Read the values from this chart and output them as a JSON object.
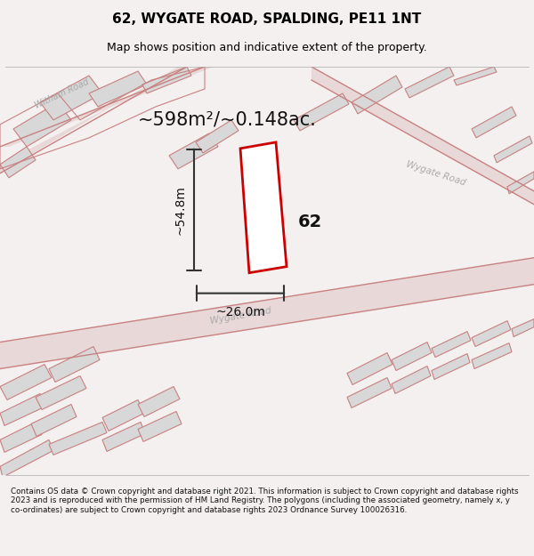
{
  "title": "62, WYGATE ROAD, SPALDING, PE11 1NT",
  "subtitle": "Map shows position and indicative extent of the property.",
  "area_text": "~598m²/~0.148ac.",
  "width_label": "~26.0m",
  "height_label": "~54.8m",
  "number_label": "62",
  "footer": "Contains OS data © Crown copyright and database right 2021. This information is subject to Crown copyright and database rights 2023 and is reproduced with the permission of HM Land Registry. The polygons (including the associated geometry, namely x, y co-ordinates) are subject to Crown copyright and database rights 2023 Ordnance Survey 100026316.",
  "bg_color": "#f5f0f0",
  "map_bg_color": "#ffffff",
  "plot_color": "#cc0000",
  "plot_fill": "#ffffff",
  "building_fill": "#d8d8d8",
  "road_line_color": "#c88080",
  "footer_bg": "#ffffff",
  "title_color": "#000000",
  "map_area": [
    0,
    0.13,
    1,
    0.87
  ]
}
